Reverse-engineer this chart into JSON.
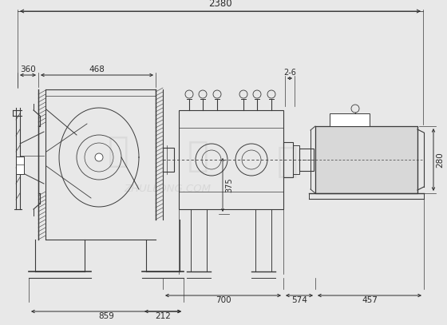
{
  "bg_color": "#e8e8e8",
  "line_color": "#3a3a3a",
  "dim_color": "#2a2a2a",
  "watermark_color": "#c8c8c8",
  "watermark_text": "ZHULLONG.COM",
  "dims": {
    "top_span": "2380",
    "left_360": "360",
    "left_468": "468",
    "right_26": "2-6",
    "right_280": "280",
    "mid_700": "700",
    "mid_574": "574",
    "mid_457": "457",
    "bot_375": "375",
    "bot_859": "859",
    "bot_212": "212"
  },
  "figsize": [
    5.6,
    4.07
  ],
  "dpi": 100
}
